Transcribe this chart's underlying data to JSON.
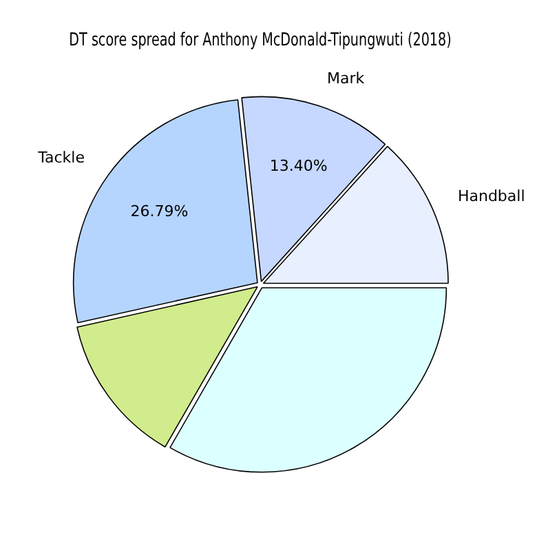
{
  "chart_data": {
    "type": "pie",
    "title": "DT score spread for Anthony McDonald-Tipungwuti (2018)",
    "categories": [
      "Handball",
      "Mark",
      "Tackle",
      null,
      null
    ],
    "values": [
      13.3,
      13.4,
      26.79,
      13.2,
      33.31
    ],
    "colors": [
      "#e8efff",
      "#c6d8ff",
      "#b5d5ff",
      "#d1ec8c",
      "#dcffff"
    ],
    "value_labels": [
      null,
      "13.40%",
      "26.79%",
      null,
      null
    ],
    "legend": false
  }
}
